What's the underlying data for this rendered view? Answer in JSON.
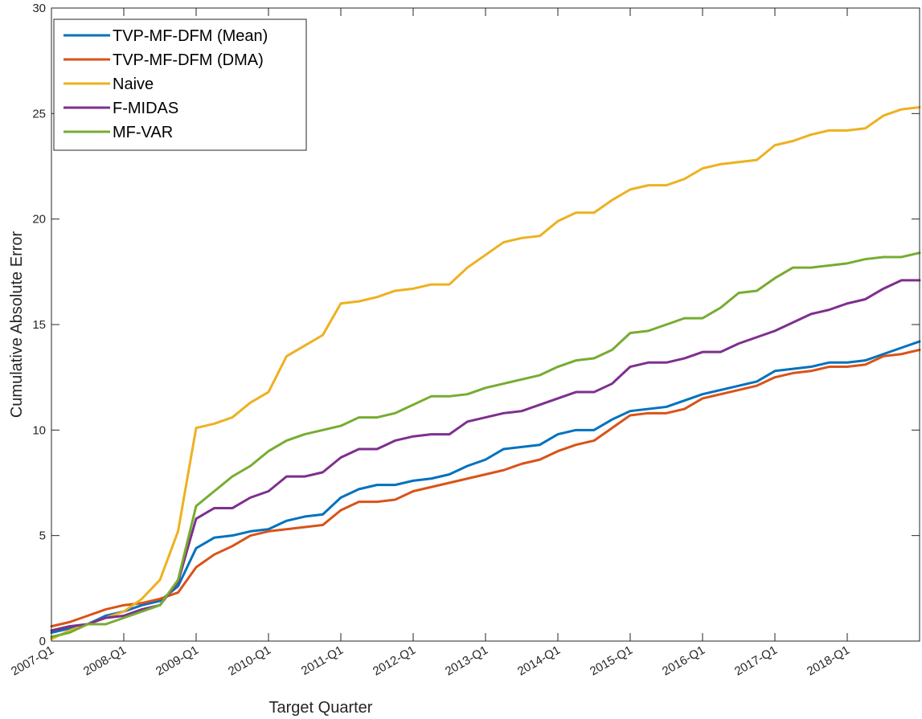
{
  "chart_data": {
    "type": "line",
    "title": "",
    "xlabel": "Target Quarter",
    "ylabel": "Cumulative Absolute Error",
    "ylim": [
      0,
      30
    ],
    "yticks": [
      0,
      5,
      10,
      15,
      20,
      25,
      30
    ],
    "xtick_labels": [
      "2007-Q1",
      "2008-Q1",
      "2009-Q1",
      "2010-Q1",
      "2011-Q1",
      "2012-Q1",
      "2013-Q1",
      "2014-Q1",
      "2015-Q1",
      "2016-Q1",
      "2017-Q1",
      "2018-Q1"
    ],
    "x_start": "2007-Q1",
    "x_end": "2019-Q4",
    "grid": false,
    "legend_position": "top-left",
    "colors": {
      "TVP-MF-DFM (Mean)": "#0072BD",
      "TVP-MF-DFM (DMA)": "#D95319",
      "Naive": "#EDB120",
      "F-MIDAS": "#7E2F8E",
      "MF-VAR": "#77AC30"
    },
    "series": [
      {
        "name": "TVP-MF-DFM (Mean)",
        "values": [
          0.4,
          0.6,
          0.8,
          1.2,
          1.4,
          1.7,
          1.9,
          2.6,
          4.4,
          4.9,
          5.0,
          5.2,
          5.3,
          5.7,
          5.9,
          6.0,
          6.8,
          7.2,
          7.4,
          7.4,
          7.6,
          7.7,
          7.9,
          8.3,
          8.6,
          9.1,
          9.2,
          9.3,
          9.8,
          10.0,
          10.0,
          10.5,
          10.9,
          11.0,
          11.1,
          11.4,
          11.7,
          11.9,
          12.1,
          12.3,
          12.8,
          12.9,
          13.0,
          13.2,
          13.2,
          13.3,
          13.6,
          13.9,
          14.2
        ]
      },
      {
        "name": "TVP-MF-DFM (DMA)",
        "values": [
          0.7,
          0.9,
          1.2,
          1.5,
          1.7,
          1.8,
          2.0,
          2.3,
          3.5,
          4.1,
          4.5,
          5.0,
          5.2,
          5.3,
          5.4,
          5.5,
          6.2,
          6.6,
          6.6,
          6.7,
          7.1,
          7.3,
          7.5,
          7.7,
          7.9,
          8.1,
          8.4,
          8.6,
          9.0,
          9.3,
          9.5,
          10.1,
          10.7,
          10.8,
          10.8,
          11.0,
          11.5,
          11.7,
          11.9,
          12.1,
          12.5,
          12.7,
          12.8,
          13.0,
          13.0,
          13.1,
          13.5,
          13.6,
          13.8
        ]
      },
      {
        "name": "Naive",
        "values": [
          0.1,
          0.5,
          0.8,
          1.1,
          1.4,
          2.0,
          2.9,
          5.2,
          10.1,
          10.3,
          10.6,
          11.3,
          11.8,
          13.5,
          14.0,
          14.5,
          16.0,
          16.1,
          16.3,
          16.6,
          16.7,
          16.9,
          16.9,
          17.7,
          18.3,
          18.9,
          19.1,
          19.2,
          19.9,
          20.3,
          20.3,
          20.9,
          21.4,
          21.6,
          21.6,
          21.9,
          22.4,
          22.6,
          22.7,
          22.8,
          23.5,
          23.7,
          24.0,
          24.2,
          24.2,
          24.3,
          24.9,
          25.2,
          25.3
        ]
      },
      {
        "name": "F-MIDAS",
        "values": [
          0.5,
          0.7,
          0.8,
          1.1,
          1.2,
          1.5,
          1.7,
          2.8,
          5.8,
          6.3,
          6.3,
          6.8,
          7.1,
          7.8,
          7.8,
          8.0,
          8.7,
          9.1,
          9.1,
          9.5,
          9.7,
          9.8,
          9.8,
          10.4,
          10.6,
          10.8,
          10.9,
          11.2,
          11.5,
          11.8,
          11.8,
          12.2,
          13.0,
          13.2,
          13.2,
          13.4,
          13.7,
          13.7,
          14.1,
          14.4,
          14.7,
          15.1,
          15.5,
          15.7,
          16.0,
          16.2,
          16.7,
          17.1,
          17.1
        ]
      },
      {
        "name": "MF-VAR",
        "values": [
          0.2,
          0.4,
          0.8,
          0.8,
          1.1,
          1.4,
          1.7,
          2.9,
          6.4,
          7.1,
          7.8,
          8.3,
          9.0,
          9.5,
          9.8,
          10.0,
          10.2,
          10.6,
          10.6,
          10.8,
          11.2,
          11.6,
          11.6,
          11.7,
          12.0,
          12.2,
          12.4,
          12.6,
          13.0,
          13.3,
          13.4,
          13.8,
          14.6,
          14.7,
          15.0,
          15.3,
          15.3,
          15.8,
          16.5,
          16.6,
          17.2,
          17.7,
          17.7,
          17.8,
          17.9,
          18.1,
          18.2,
          18.2,
          18.4
        ]
      }
    ]
  }
}
